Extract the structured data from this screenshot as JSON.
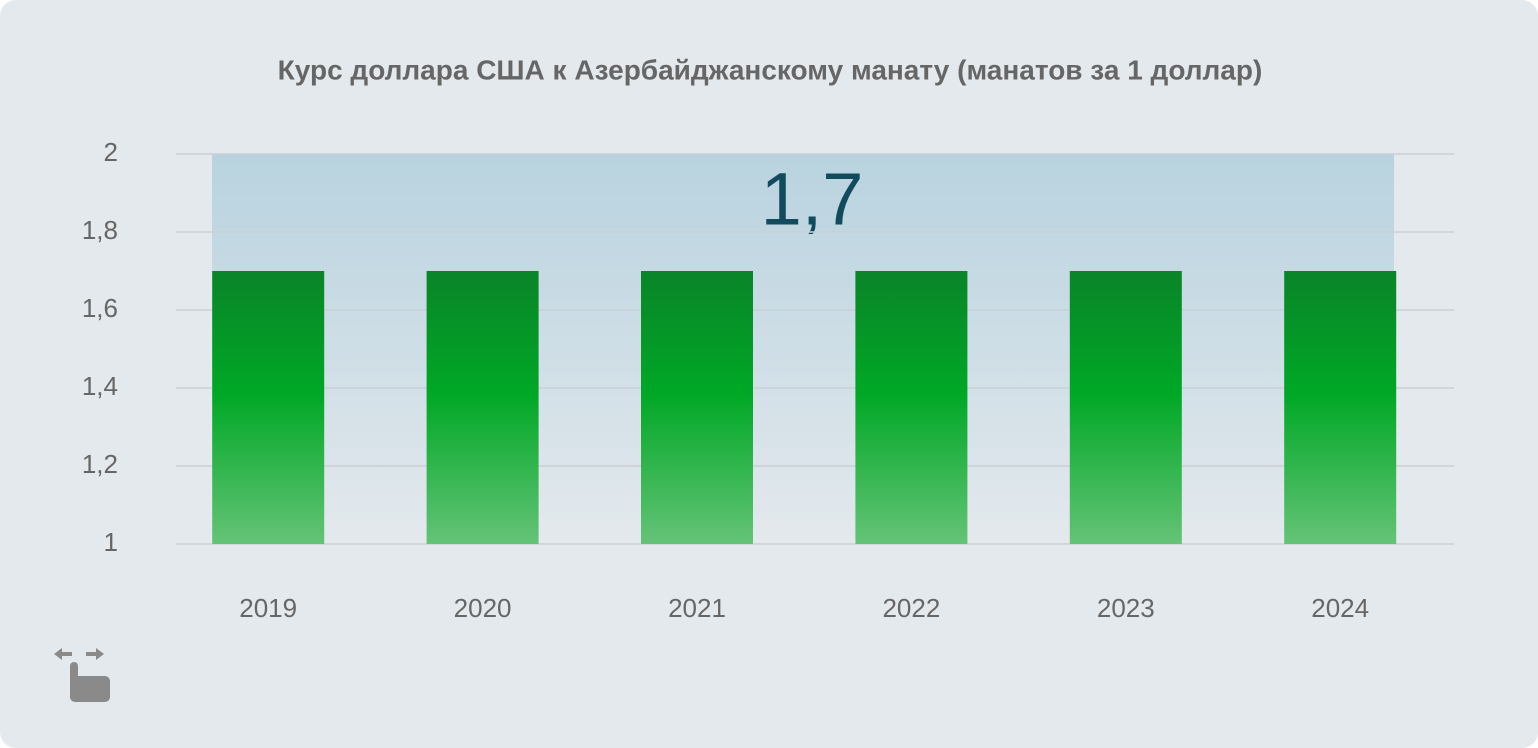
{
  "chart_data": {
    "type": "bar",
    "title": "Курс доллара США к Азербайджанскому манату (манатов за 1 доллар)",
    "annotation": "1,7",
    "categories": [
      "2019",
      "2020",
      "2021",
      "2022",
      "2023",
      "2024"
    ],
    "values": [
      1.7,
      1.7,
      1.7,
      1.7,
      1.7,
      1.7
    ],
    "color": "#00a826",
    "ylim": [
      1,
      2
    ],
    "yticks": [
      1,
      {
        "value": 1.2,
        "label": "1,2"
      },
      {
        "value": 1.4,
        "label": "1,4"
      },
      {
        "value": 1.6,
        "label": "1,6"
      },
      {
        "value": 1.8,
        "label": "1,8"
      },
      2
    ],
    "grid": true
  }
}
